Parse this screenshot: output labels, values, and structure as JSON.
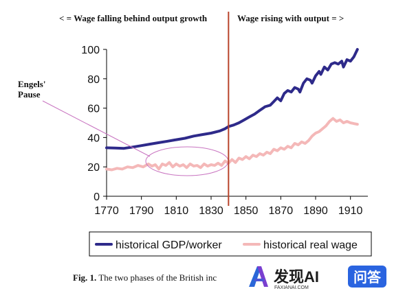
{
  "chart_data": {
    "type": "line",
    "title": "",
    "xlabel": "",
    "ylabel": "",
    "xlim": [
      1770,
      1920
    ],
    "ylim": [
      0,
      100
    ],
    "x_ticks": [
      "1770",
      "1790",
      "1810",
      "1830",
      "1850",
      "1870",
      "1890",
      "1910"
    ],
    "y_ticks": [
      "0",
      "20",
      "40",
      "60",
      "80",
      "100"
    ],
    "grid": false,
    "legend_position": "bottom",
    "annotations": {
      "left_phase": "< = Wage falling behind output growth",
      "right_phase": "Wage rising with output = >",
      "pause_label_line1": "Engels'",
      "pause_label_line2": "Pause",
      "divider_year": 1840
    },
    "series": [
      {
        "name": "historical GDP/worker",
        "color": "#2e2a8a",
        "points": [
          [
            1770,
            33
          ],
          [
            1775,
            32.8
          ],
          [
            1780,
            32.6
          ],
          [
            1785,
            33.5
          ],
          [
            1790,
            34.5
          ],
          [
            1795,
            35.5
          ],
          [
            1800,
            36.5
          ],
          [
            1805,
            37.5
          ],
          [
            1810,
            38.5
          ],
          [
            1815,
            39.5
          ],
          [
            1820,
            41
          ],
          [
            1825,
            42
          ],
          [
            1830,
            43
          ],
          [
            1835,
            44.5
          ],
          [
            1838,
            46
          ],
          [
            1840,
            47.5
          ],
          [
            1843,
            48.5
          ],
          [
            1846,
            50
          ],
          [
            1849,
            52
          ],
          [
            1852,
            54
          ],
          [
            1855,
            56
          ],
          [
            1858,
            58.5
          ],
          [
            1861,
            61
          ],
          [
            1864,
            62
          ],
          [
            1866,
            64.5
          ],
          [
            1868,
            67
          ],
          [
            1870,
            65
          ],
          [
            1872,
            70
          ],
          [
            1874,
            72
          ],
          [
            1876,
            71
          ],
          [
            1878,
            74
          ],
          [
            1880,
            73
          ],
          [
            1881,
            71
          ],
          [
            1883,
            77
          ],
          [
            1885,
            80
          ],
          [
            1887,
            79
          ],
          [
            1888,
            77
          ],
          [
            1890,
            82
          ],
          [
            1892,
            85
          ],
          [
            1893,
            83
          ],
          [
            1895,
            88
          ],
          [
            1897,
            86
          ],
          [
            1899,
            90
          ],
          [
            1901,
            91
          ],
          [
            1903,
            90
          ],
          [
            1905,
            92
          ],
          [
            1906,
            88
          ],
          [
            1908,
            93
          ],
          [
            1910,
            92
          ],
          [
            1912,
            95
          ],
          [
            1914,
            100
          ]
        ]
      },
      {
        "name": "historical real wage",
        "color": "#f4b8b8",
        "points": [
          [
            1770,
            18.5
          ],
          [
            1773,
            18
          ],
          [
            1776,
            19
          ],
          [
            1779,
            18.5
          ],
          [
            1782,
            20
          ],
          [
            1785,
            19.5
          ],
          [
            1788,
            21
          ],
          [
            1791,
            20
          ],
          [
            1794,
            22
          ],
          [
            1796,
            20.5
          ],
          [
            1798,
            21.5
          ],
          [
            1800,
            18.5
          ],
          [
            1802,
            22
          ],
          [
            1804,
            21
          ],
          [
            1806,
            23
          ],
          [
            1808,
            20
          ],
          [
            1810,
            22
          ],
          [
            1812,
            20.5
          ],
          [
            1814,
            21.5
          ],
          [
            1816,
            19.5
          ],
          [
            1818,
            22
          ],
          [
            1820,
            20.5
          ],
          [
            1822,
            21
          ],
          [
            1824,
            19.5
          ],
          [
            1826,
            22
          ],
          [
            1828,
            20.5
          ],
          [
            1830,
            21.5
          ],
          [
            1832,
            21
          ],
          [
            1834,
            22.5
          ],
          [
            1836,
            21
          ],
          [
            1838,
            24
          ],
          [
            1840,
            22.5
          ],
          [
            1842,
            25
          ],
          [
            1844,
            23
          ],
          [
            1846,
            26
          ],
          [
            1848,
            25
          ],
          [
            1850,
            27
          ],
          [
            1852,
            25.5
          ],
          [
            1854,
            28
          ],
          [
            1856,
            27
          ],
          [
            1858,
            29
          ],
          [
            1860,
            28
          ],
          [
            1862,
            30
          ],
          [
            1864,
            29
          ],
          [
            1866,
            32
          ],
          [
            1868,
            31
          ],
          [
            1870,
            33
          ],
          [
            1872,
            32
          ],
          [
            1874,
            34
          ],
          [
            1876,
            33
          ],
          [
            1878,
            36
          ],
          [
            1880,
            35
          ],
          [
            1882,
            37
          ],
          [
            1884,
            36
          ],
          [
            1886,
            38
          ],
          [
            1888,
            41
          ],
          [
            1890,
            43
          ],
          [
            1892,
            44
          ],
          [
            1894,
            46
          ],
          [
            1896,
            48
          ],
          [
            1898,
            51
          ],
          [
            1900,
            53
          ],
          [
            1902,
            51
          ],
          [
            1904,
            52
          ],
          [
            1906,
            50
          ],
          [
            1908,
            51
          ],
          [
            1910,
            50
          ],
          [
            1912,
            49.5
          ],
          [
            1914,
            49
          ]
        ]
      }
    ]
  },
  "caption": {
    "label": "Fig. 1.",
    "text": "The two phases of the British inc"
  },
  "watermark": {
    "brand": "发现AI",
    "sub": "FAXIANAI.COM",
    "badge": "问答"
  }
}
